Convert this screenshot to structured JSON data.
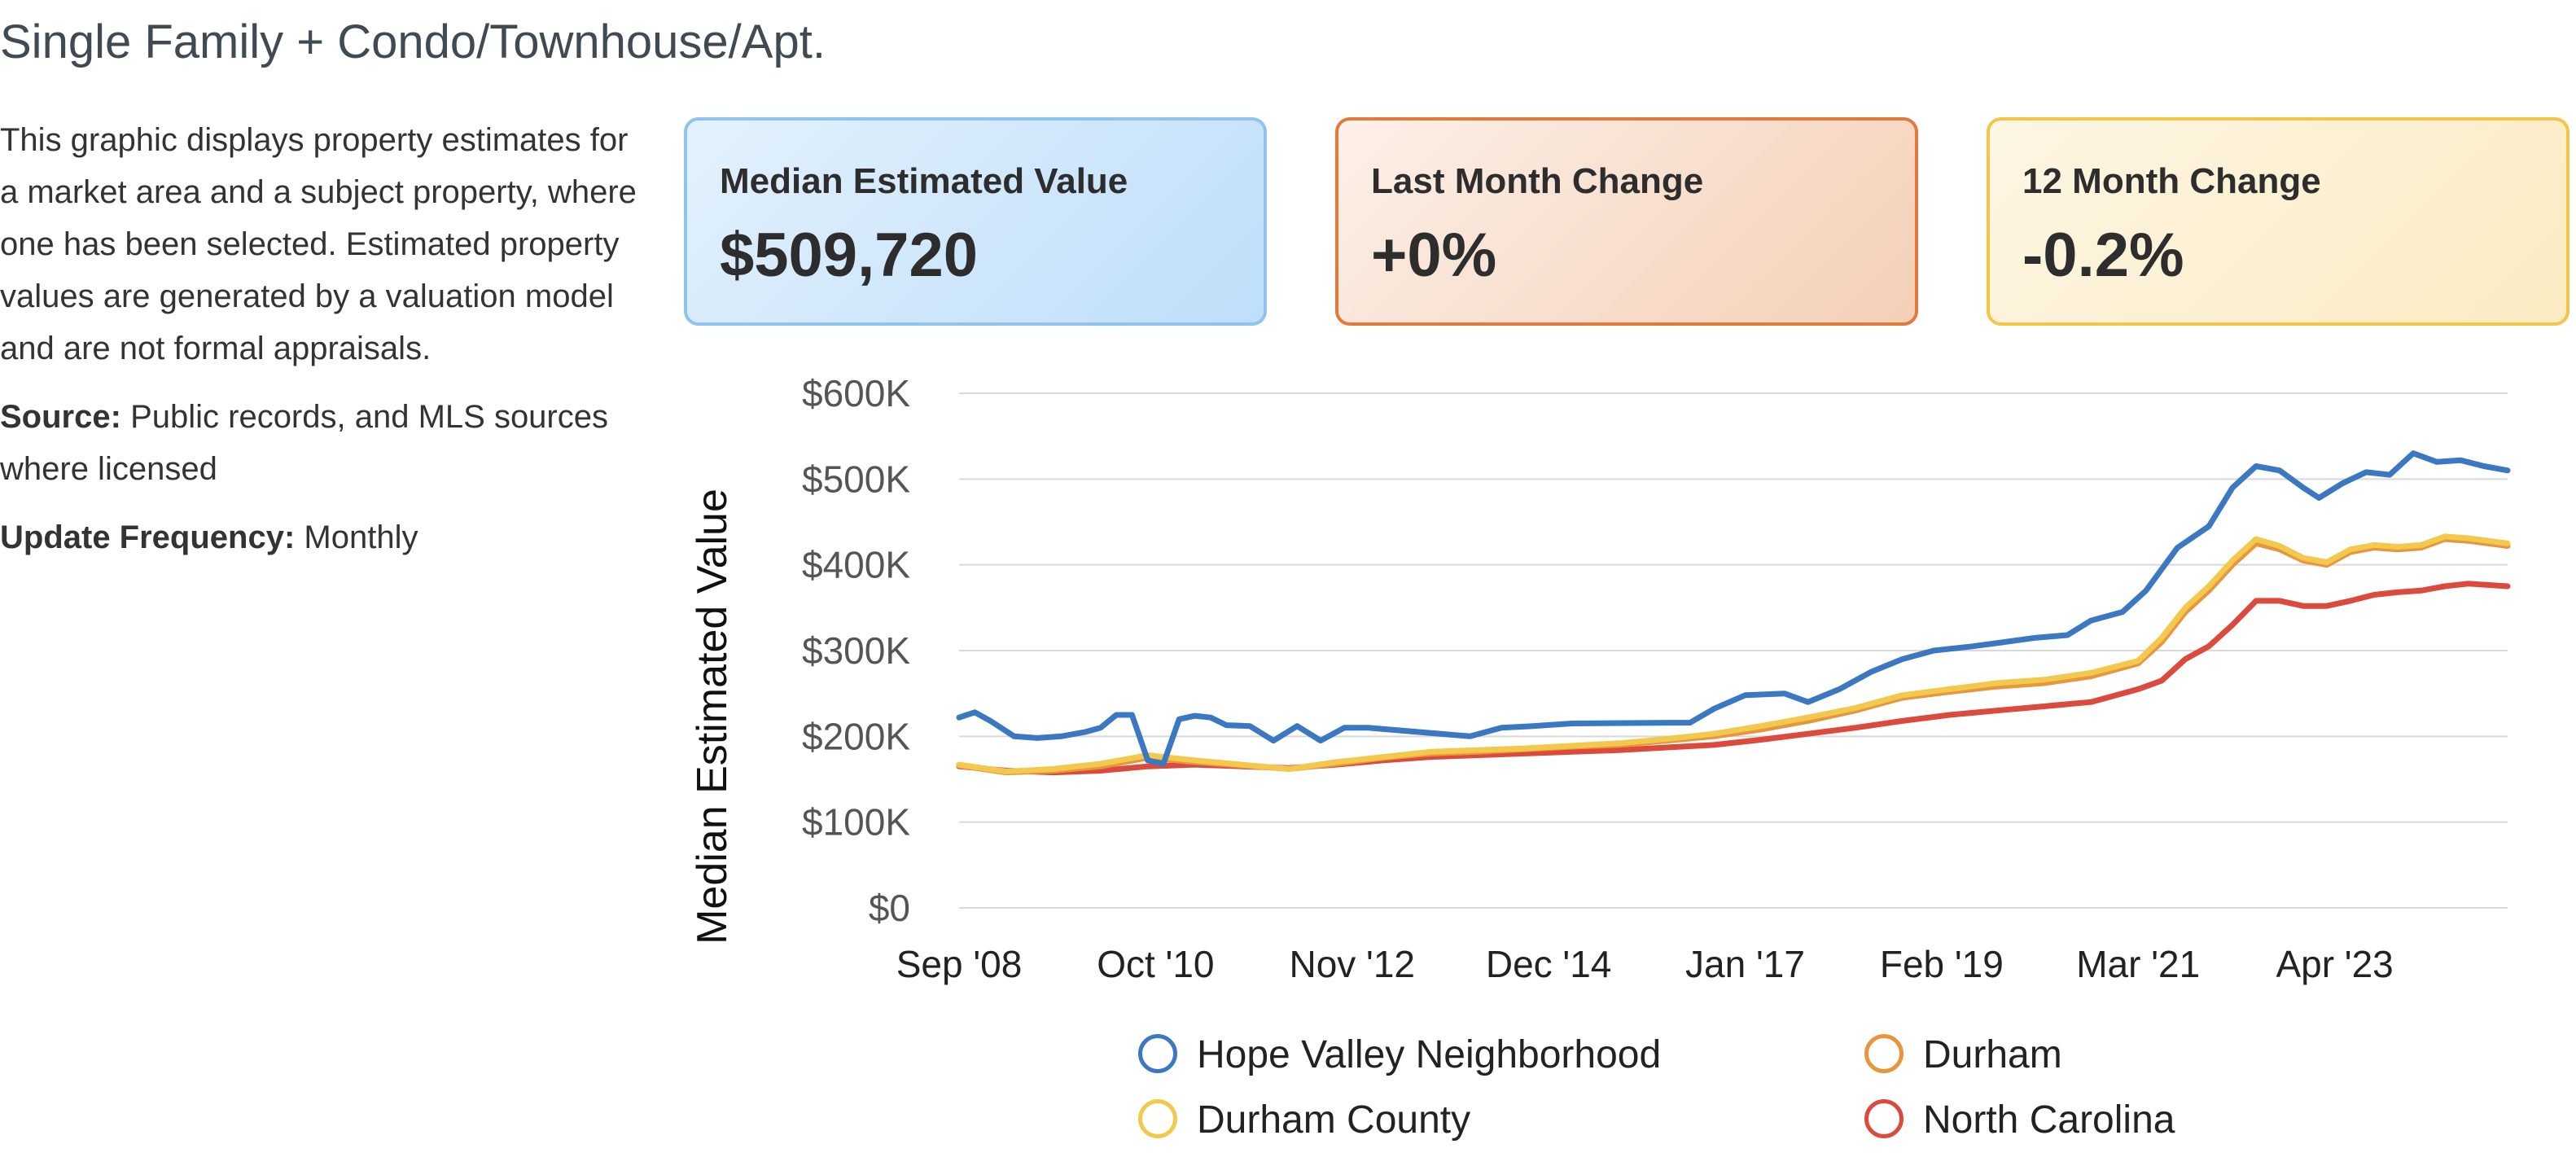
{
  "header": {
    "title": "Single Family + Condo/Townhouse/Apt."
  },
  "description": {
    "text": "This graphic displays property estimates for a market area and a subject property, where one has been selected. Estimated property values are generated by a valuation model and are not formal appraisals.",
    "source_label": "Source:",
    "source_text": "Public records, and MLS sources where licensed",
    "frequency_label": "Update Frequency:",
    "frequency_text": "Monthly"
  },
  "cards": [
    {
      "label": "Median Estimated Value",
      "value": "$509,720",
      "color": "#90c4ef"
    },
    {
      "label": "Last Month Change",
      "value": "+0%",
      "color": "#e07b3c"
    },
    {
      "label": "12 Month Change",
      "value": "-0.2%",
      "color": "#f3c64a"
    }
  ],
  "chart_data": {
    "type": "line",
    "ylabel": "Median Estimated Value",
    "ylim": [
      0,
      600000
    ],
    "y_ticks": [
      {
        "value": 0,
        "label": "$0"
      },
      {
        "value": 100000,
        "label": "$100K"
      },
      {
        "value": 200000,
        "label": "$200K"
      },
      {
        "value": 300000,
        "label": "$300K"
      },
      {
        "value": 400000,
        "label": "$400K"
      },
      {
        "value": 500000,
        "label": "$500K"
      },
      {
        "value": 600000,
        "label": "$600K"
      }
    ],
    "x_ticks": [
      "Sep '08",
      "Oct '10",
      "Nov '12",
      "Dec '14",
      "Jan '17",
      "Feb '19",
      "Mar '21",
      "Apr '23"
    ],
    "x_range": [
      "2008-09",
      "2025-02"
    ],
    "grid": true,
    "legend_position": "bottom",
    "series": [
      {
        "name": "Hope Valley Neighborhood",
        "color": "#3a78c2",
        "points": [
          [
            "2008-09",
            222000
          ],
          [
            "2008-11",
            228000
          ],
          [
            "2009-01",
            218000
          ],
          [
            "2009-04",
            200000
          ],
          [
            "2009-07",
            198000
          ],
          [
            "2009-10",
            200000
          ],
          [
            "2010-01",
            205000
          ],
          [
            "2010-03",
            210000
          ],
          [
            "2010-05",
            225000
          ],
          [
            "2010-07",
            225000
          ],
          [
            "2010-09",
            172000
          ],
          [
            "2010-11",
            168000
          ],
          [
            "2011-01",
            220000
          ],
          [
            "2011-03",
            224000
          ],
          [
            "2011-05",
            222000
          ],
          [
            "2011-07",
            213000
          ],
          [
            "2011-10",
            212000
          ],
          [
            "2012-01",
            195000
          ],
          [
            "2012-04",
            212000
          ],
          [
            "2012-07",
            195000
          ],
          [
            "2012-10",
            210000
          ],
          [
            "2013-01",
            210000
          ],
          [
            "2014-02",
            200000
          ],
          [
            "2014-06",
            210000
          ],
          [
            "2014-10",
            212000
          ],
          [
            "2015-03",
            215000
          ],
          [
            "2016-06",
            216000
          ],
          [
            "2016-09",
            232000
          ],
          [
            "2017-01",
            248000
          ],
          [
            "2017-06",
            250000
          ],
          [
            "2017-09",
            240000
          ],
          [
            "2018-01",
            255000
          ],
          [
            "2018-05",
            275000
          ],
          [
            "2018-09",
            290000
          ],
          [
            "2019-01",
            300000
          ],
          [
            "2019-06",
            305000
          ],
          [
            "2019-10",
            310000
          ],
          [
            "2020-02",
            315000
          ],
          [
            "2020-06",
            318000
          ],
          [
            "2020-09",
            335000
          ],
          [
            "2021-01",
            345000
          ],
          [
            "2021-04",
            370000
          ],
          [
            "2021-08",
            420000
          ],
          [
            "2021-12",
            445000
          ],
          [
            "2022-03",
            490000
          ],
          [
            "2022-06",
            515000
          ],
          [
            "2022-09",
            510000
          ],
          [
            "2022-12",
            490000
          ],
          [
            "2023-02",
            478000
          ],
          [
            "2023-05",
            495000
          ],
          [
            "2023-08",
            508000
          ],
          [
            "2023-11",
            505000
          ],
          [
            "2024-02",
            530000
          ],
          [
            "2024-05",
            520000
          ],
          [
            "2024-08",
            522000
          ],
          [
            "2024-11",
            515000
          ],
          [
            "2025-02",
            510000
          ]
        ]
      },
      {
        "name": "Durham",
        "color": "#e8963e",
        "points": [
          [
            "2008-09",
            166000
          ],
          [
            "2009-03",
            158000
          ],
          [
            "2009-09",
            160000
          ],
          [
            "2010-03",
            165000
          ],
          [
            "2010-09",
            175000
          ],
          [
            "2011-03",
            170000
          ],
          [
            "2011-09",
            166000
          ],
          [
            "2012-03",
            162000
          ],
          [
            "2012-09",
            168000
          ],
          [
            "2013-03",
            175000
          ],
          [
            "2013-09",
            180000
          ],
          [
            "2014-03",
            182000
          ],
          [
            "2014-09",
            185000
          ],
          [
            "2015-03",
            188000
          ],
          [
            "2015-09",
            190000
          ],
          [
            "2016-03",
            195000
          ],
          [
            "2016-09",
            200000
          ],
          [
            "2017-03",
            208000
          ],
          [
            "2017-09",
            218000
          ],
          [
            "2018-03",
            230000
          ],
          [
            "2018-09",
            245000
          ],
          [
            "2019-03",
            252000
          ],
          [
            "2019-09",
            258000
          ],
          [
            "2020-03",
            262000
          ],
          [
            "2020-09",
            270000
          ],
          [
            "2021-03",
            285000
          ],
          [
            "2021-06",
            310000
          ],
          [
            "2021-09",
            345000
          ],
          [
            "2021-12",
            370000
          ],
          [
            "2022-03",
            400000
          ],
          [
            "2022-06",
            425000
          ],
          [
            "2022-09",
            418000
          ],
          [
            "2022-12",
            405000
          ],
          [
            "2023-03",
            400000
          ],
          [
            "2023-06",
            415000
          ],
          [
            "2023-09",
            420000
          ],
          [
            "2023-12",
            418000
          ],
          [
            "2024-03",
            420000
          ],
          [
            "2024-06",
            430000
          ],
          [
            "2024-09",
            428000
          ],
          [
            "2025-02",
            422000
          ]
        ]
      },
      {
        "name": "Durham County",
        "color": "#f2c94c",
        "points": [
          [
            "2008-09",
            167000
          ],
          [
            "2009-03",
            159000
          ],
          [
            "2009-09",
            162000
          ],
          [
            "2010-03",
            168000
          ],
          [
            "2010-09",
            178000
          ],
          [
            "2011-03",
            172000
          ],
          [
            "2011-09",
            167000
          ],
          [
            "2012-03",
            162000
          ],
          [
            "2012-09",
            170000
          ],
          [
            "2013-03",
            176000
          ],
          [
            "2013-09",
            182000
          ],
          [
            "2014-03",
            184000
          ],
          [
            "2014-09",
            186000
          ],
          [
            "2015-03",
            189000
          ],
          [
            "2015-09",
            192000
          ],
          [
            "2016-03",
            197000
          ],
          [
            "2016-09",
            203000
          ],
          [
            "2017-03",
            212000
          ],
          [
            "2017-09",
            222000
          ],
          [
            "2018-03",
            233000
          ],
          [
            "2018-09",
            248000
          ],
          [
            "2019-03",
            255000
          ],
          [
            "2019-09",
            262000
          ],
          [
            "2020-03",
            266000
          ],
          [
            "2020-09",
            274000
          ],
          [
            "2021-03",
            288000
          ],
          [
            "2021-06",
            315000
          ],
          [
            "2021-09",
            350000
          ],
          [
            "2021-12",
            375000
          ],
          [
            "2022-03",
            405000
          ],
          [
            "2022-06",
            430000
          ],
          [
            "2022-09",
            422000
          ],
          [
            "2022-12",
            408000
          ],
          [
            "2023-03",
            403000
          ],
          [
            "2023-06",
            418000
          ],
          [
            "2023-09",
            423000
          ],
          [
            "2023-12",
            421000
          ],
          [
            "2024-03",
            423000
          ],
          [
            "2024-06",
            433000
          ],
          [
            "2024-09",
            431000
          ],
          [
            "2025-02",
            425000
          ]
        ]
      },
      {
        "name": "North Carolina",
        "color": "#dc4a3d",
        "points": [
          [
            "2008-09",
            165000
          ],
          [
            "2009-03",
            160000
          ],
          [
            "2009-09",
            158000
          ],
          [
            "2010-03",
            160000
          ],
          [
            "2010-09",
            165000
          ],
          [
            "2011-03",
            167000
          ],
          [
            "2011-09",
            165000
          ],
          [
            "2012-03",
            163000
          ],
          [
            "2012-09",
            167000
          ],
          [
            "2013-03",
            172000
          ],
          [
            "2013-09",
            176000
          ],
          [
            "2014-03",
            178000
          ],
          [
            "2014-09",
            180000
          ],
          [
            "2015-03",
            182000
          ],
          [
            "2015-09",
            184000
          ],
          [
            "2016-03",
            187000
          ],
          [
            "2016-09",
            190000
          ],
          [
            "2017-03",
            196000
          ],
          [
            "2017-09",
            203000
          ],
          [
            "2018-03",
            210000
          ],
          [
            "2018-09",
            218000
          ],
          [
            "2019-03",
            225000
          ],
          [
            "2019-09",
            230000
          ],
          [
            "2020-03",
            235000
          ],
          [
            "2020-09",
            240000
          ],
          [
            "2021-03",
            255000
          ],
          [
            "2021-06",
            265000
          ],
          [
            "2021-09",
            290000
          ],
          [
            "2021-12",
            305000
          ],
          [
            "2022-03",
            330000
          ],
          [
            "2022-06",
            358000
          ],
          [
            "2022-09",
            358000
          ],
          [
            "2022-12",
            352000
          ],
          [
            "2023-03",
            352000
          ],
          [
            "2023-06",
            358000
          ],
          [
            "2023-09",
            365000
          ],
          [
            "2023-12",
            368000
          ],
          [
            "2024-03",
            370000
          ],
          [
            "2024-06",
            375000
          ],
          [
            "2024-09",
            378000
          ],
          [
            "2025-02",
            375000
          ]
        ]
      }
    ]
  }
}
